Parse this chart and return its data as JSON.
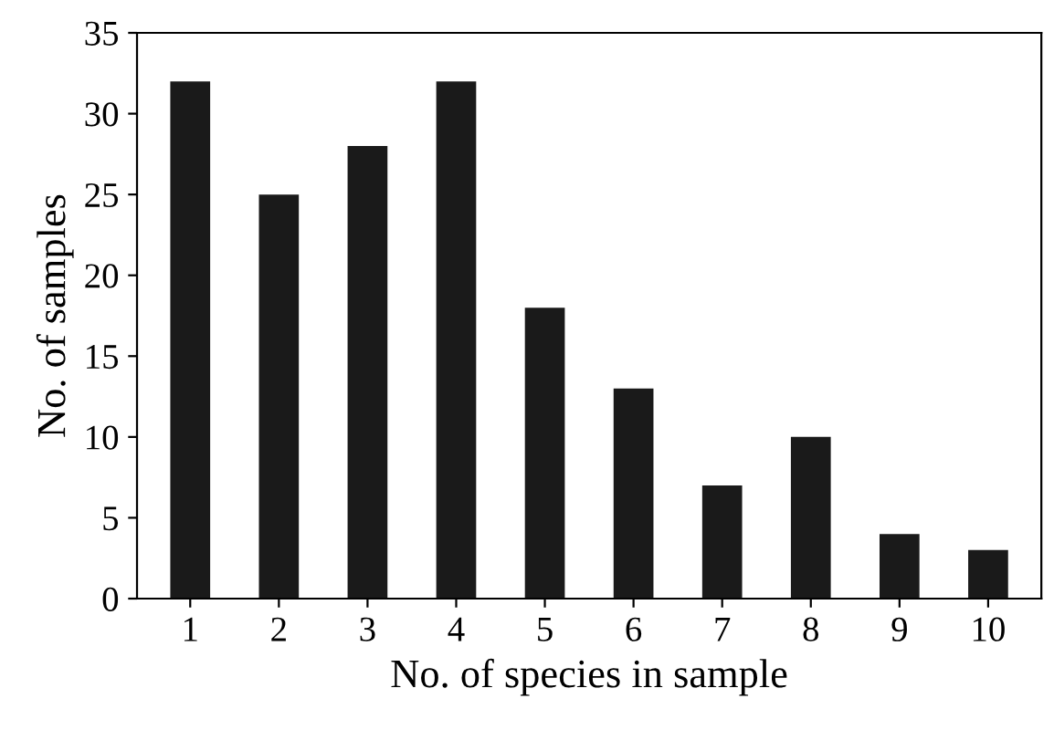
{
  "chart_data": {
    "type": "bar",
    "xlabel": "No. of species in sample",
    "ylabel": "No. of samples",
    "categories": [
      "1",
      "2",
      "3",
      "4",
      "5",
      "6",
      "7",
      "8",
      "9",
      "10"
    ],
    "values": [
      32,
      25,
      28,
      32,
      18,
      13,
      7,
      10,
      4,
      3
    ],
    "color": "#1a1a1a",
    "ylim": [
      0,
      35
    ],
    "yticks": [
      0,
      5,
      10,
      15,
      20,
      25,
      30,
      35
    ],
    "grid": false
  }
}
